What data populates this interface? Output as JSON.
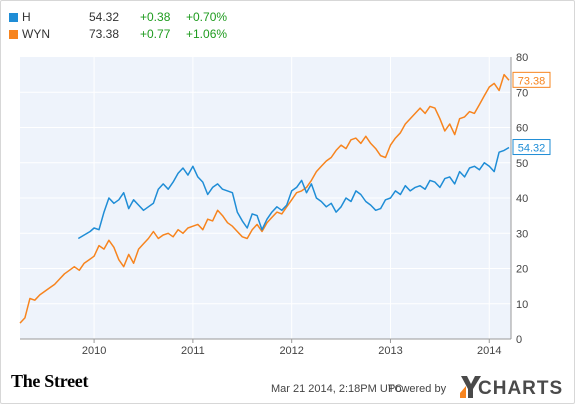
{
  "legend": [
    {
      "ticker": "H",
      "price": "54.32",
      "change": "+0.38",
      "percent": "+0.70%",
      "color": "#1f8dd6"
    },
    {
      "ticker": "WYN",
      "price": "73.38",
      "change": "+0.77",
      "percent": "+1.06%",
      "color": "#f7841e"
    }
  ],
  "chart_data": {
    "type": "line",
    "x_ticks": [
      "2010",
      "2011",
      "2012",
      "2013",
      "2014"
    ],
    "y_ticks": [
      0,
      10,
      20,
      30,
      40,
      50,
      60,
      70,
      80
    ],
    "ylim": [
      0,
      80
    ],
    "xlim": [
      2009.25,
      2014.22
    ],
    "grid": true,
    "series": [
      {
        "name": "H",
        "color": "#1f8dd6",
        "last_label": "54.32",
        "x": [
          2009.84,
          2009.9,
          2009.96,
          2010.0,
          2010.05,
          2010.1,
          2010.15,
          2010.2,
          2010.25,
          2010.3,
          2010.35,
          2010.4,
          2010.45,
          2010.5,
          2010.55,
          2010.6,
          2010.65,
          2010.7,
          2010.75,
          2010.8,
          2010.85,
          2010.9,
          2010.95,
          2011.0,
          2011.05,
          2011.1,
          2011.15,
          2011.2,
          2011.25,
          2011.3,
          2011.35,
          2011.4,
          2011.45,
          2011.5,
          2011.55,
          2011.6,
          2011.65,
          2011.7,
          2011.75,
          2011.8,
          2011.85,
          2011.9,
          2011.95,
          2012.0,
          2012.05,
          2012.1,
          2012.15,
          2012.2,
          2012.25,
          2012.3,
          2012.35,
          2012.4,
          2012.45,
          2012.5,
          2012.55,
          2012.6,
          2012.65,
          2012.7,
          2012.75,
          2012.8,
          2012.85,
          2012.9,
          2012.95,
          2013.0,
          2013.05,
          2013.1,
          2013.15,
          2013.2,
          2013.25,
          2013.3,
          2013.35,
          2013.4,
          2013.45,
          2013.5,
          2013.55,
          2013.6,
          2013.65,
          2013.7,
          2013.75,
          2013.8,
          2013.85,
          2013.9,
          2013.95,
          2014.0,
          2014.05,
          2014.1,
          2014.15,
          2014.2
        ],
        "y": [
          28.5,
          29.5,
          30.5,
          31.5,
          31.0,
          36.0,
          40.0,
          38.5,
          39.5,
          41.5,
          37.0,
          39.5,
          38.0,
          36.5,
          37.5,
          38.5,
          42.5,
          44.0,
          42.5,
          44.5,
          47.0,
          48.5,
          46.5,
          49.0,
          46.0,
          44.5,
          41.0,
          43.0,
          44.0,
          42.5,
          42.0,
          41.5,
          36.0,
          33.5,
          31.5,
          35.5,
          35.0,
          31.0,
          34.0,
          36.0,
          37.5,
          36.5,
          38.0,
          42.0,
          43.0,
          45.0,
          41.5,
          44.0,
          40.0,
          39.0,
          37.5,
          38.5,
          36.0,
          37.5,
          40.0,
          39.0,
          42.0,
          41.0,
          39.0,
          38.0,
          36.5,
          37.0,
          39.5,
          40.0,
          42.0,
          41.0,
          43.5,
          42.0,
          43.0,
          43.5,
          42.5,
          45.0,
          44.5,
          43.0,
          45.5,
          46.0,
          44.0,
          47.5,
          46.0,
          48.5,
          49.0,
          48.0,
          50.0,
          49.0,
          47.5,
          53.0,
          53.5,
          54.32
        ]
      },
      {
        "name": "WYN",
        "color": "#f7841e",
        "last_label": "73.38",
        "x": [
          2009.25,
          2009.3,
          2009.35,
          2009.4,
          2009.45,
          2009.5,
          2009.55,
          2009.6,
          2009.65,
          2009.7,
          2009.75,
          2009.8,
          2009.85,
          2009.9,
          2009.95,
          2010.0,
          2010.05,
          2010.1,
          2010.15,
          2010.2,
          2010.25,
          2010.3,
          2010.35,
          2010.4,
          2010.45,
          2010.5,
          2010.55,
          2010.6,
          2010.65,
          2010.7,
          2010.75,
          2010.8,
          2010.85,
          2010.9,
          2010.95,
          2011.0,
          2011.05,
          2011.1,
          2011.15,
          2011.2,
          2011.25,
          2011.3,
          2011.35,
          2011.4,
          2011.45,
          2011.5,
          2011.55,
          2011.6,
          2011.65,
          2011.7,
          2011.75,
          2011.8,
          2011.85,
          2011.9,
          2011.95,
          2012.0,
          2012.05,
          2012.1,
          2012.15,
          2012.2,
          2012.25,
          2012.3,
          2012.35,
          2012.4,
          2012.45,
          2012.5,
          2012.55,
          2012.6,
          2012.65,
          2012.7,
          2012.75,
          2012.8,
          2012.85,
          2012.9,
          2012.95,
          2013.0,
          2013.05,
          2013.1,
          2013.15,
          2013.2,
          2013.25,
          2013.3,
          2013.35,
          2013.4,
          2013.45,
          2013.5,
          2013.55,
          2013.6,
          2013.65,
          2013.7,
          2013.75,
          2013.8,
          2013.85,
          2013.9,
          2013.95,
          2014.0,
          2014.05,
          2014.1,
          2014.15,
          2014.2
        ],
        "y": [
          4.5,
          6.0,
          11.5,
          11.0,
          12.5,
          13.5,
          14.5,
          15.5,
          17.0,
          18.5,
          19.5,
          20.5,
          19.5,
          21.5,
          22.5,
          23.5,
          26.5,
          25.5,
          28.0,
          26.0,
          22.5,
          20.5,
          24.0,
          21.5,
          25.5,
          27.0,
          28.5,
          30.5,
          28.5,
          29.5,
          30.0,
          29.0,
          31.0,
          30.0,
          31.5,
          32.0,
          32.5,
          31.0,
          34.0,
          33.5,
          36.5,
          35.0,
          33.0,
          32.0,
          30.5,
          29.0,
          28.5,
          31.0,
          32.5,
          30.5,
          33.0,
          34.5,
          36.0,
          35.5,
          37.5,
          39.5,
          41.5,
          42.0,
          43.0,
          45.0,
          47.5,
          49.0,
          50.5,
          51.5,
          53.5,
          55.0,
          54.0,
          56.5,
          57.0,
          55.5,
          57.5,
          55.5,
          54.0,
          52.0,
          51.5,
          55.0,
          57.0,
          58.5,
          61.0,
          62.5,
          64.0,
          65.5,
          64.0,
          66.0,
          65.5,
          62.5,
          59.0,
          61.0,
          58.0,
          62.5,
          63.0,
          64.5,
          64.0,
          66.5,
          69.0,
          71.5,
          72.5,
          70.5,
          75.0,
          73.38
        ]
      }
    ]
  },
  "footer": {
    "brand": "The Street",
    "timestamp": "Mar 21 2014, 2:18PM UTC.",
    "powered_by": "Powered by",
    "ycharts": "CHARTS"
  }
}
